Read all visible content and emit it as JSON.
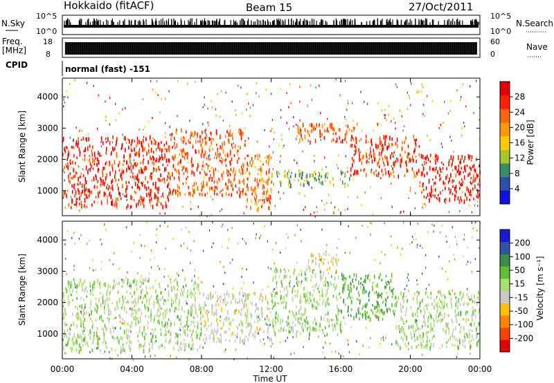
{
  "header": {
    "station": "Hokkaido (fitACF)",
    "beam": "Beam 15",
    "date": "27/Oct/2011"
  },
  "noise_panel": {
    "left_label": "N.Sky",
    "right_label": "N.Search",
    "ticks_left": [
      "10^5",
      "10^0"
    ],
    "ticks_right": [
      "10^5",
      "10^0"
    ]
  },
  "freq_panel": {
    "left_label_1": "Freq.",
    "left_label_2": "[MHz]",
    "right_label": "Nave",
    "ticks_left": [
      "18",
      "8"
    ],
    "ticks_right": [
      "60",
      "0"
    ]
  },
  "cpid_panel": {
    "label": "CPID",
    "text": "normal (fast) -151"
  },
  "colors": {
    "power_scale": [
      "#1010e0",
      "#2c4fa8",
      "#3c8c6c",
      "#a8c828",
      "#ffcc00",
      "#ff9900",
      "#ff6600",
      "#ff2200",
      "#e00000"
    ],
    "velocity_scale": [
      "#1a1ad0",
      "#2b56a8",
      "#3c8c4c",
      "#60c030",
      "#a8e070",
      "#c8c8c8",
      "#ffc000",
      "#ff8800",
      "#ff4400",
      "#e00000"
    ]
  },
  "chart_data": [
    {
      "type": "heatmap",
      "name": "power",
      "xlabel": "",
      "ylabel": "Slant Range [km]",
      "xlim": [
        "00:00",
        "00:00"
      ],
      "ylim": [
        200,
        4600
      ],
      "yticks": [
        "1000",
        "2000",
        "3000",
        "4000"
      ],
      "colorbar": {
        "label": "Power [dB]",
        "ticks": [
          "4",
          "8",
          "12",
          "16",
          "20",
          "24",
          "28"
        ]
      },
      "regions": [
        {
          "t0": 0.0,
          "t1": 6.2,
          "r0": 500,
          "r1": 2800,
          "v": 25
        },
        {
          "t0": 6.2,
          "t1": 10.5,
          "r0": 900,
          "r1": 3000,
          "v": 22
        },
        {
          "t0": 10.5,
          "t1": 12.0,
          "r0": 400,
          "r1": 2200,
          "v": 20
        },
        {
          "t0": 12.0,
          "t1": 16.5,
          "r0": 1200,
          "r1": 1700,
          "v": 10
        },
        {
          "t0": 13.5,
          "t1": 17.0,
          "r0": 2600,
          "r1": 3200,
          "v": 22
        },
        {
          "t0": 16.5,
          "t1": 20.5,
          "r0": 1500,
          "r1": 2800,
          "v": 24
        },
        {
          "t0": 20.5,
          "t1": 24.0,
          "r0": 700,
          "r1": 2200,
          "v": 27
        }
      ]
    },
    {
      "type": "heatmap",
      "name": "velocity",
      "xlabel": "Time UT",
      "ylabel": "Slant Range [km]",
      "xticks": [
        "00:00",
        "04:00",
        "08:00",
        "12:00",
        "16:00",
        "20:00",
        "00:00"
      ],
      "ylim": [
        200,
        4600
      ],
      "yticks": [
        "1000",
        "2000",
        "3000",
        "4000"
      ],
      "colorbar": {
        "label": "Velocity [m s⁻¹]",
        "ticks": [
          "200",
          "100",
          "50",
          "15",
          "-15",
          "-50",
          "-100",
          "-200"
        ]
      },
      "regions": [
        {
          "t0": 0.0,
          "t1": 8.0,
          "r0": 500,
          "r1": 2800,
          "v": 0
        },
        {
          "t0": 8.0,
          "t1": 12.0,
          "r0": 800,
          "r1": 2400,
          "v": -30
        },
        {
          "t0": 12.0,
          "t1": 16.0,
          "r0": 1000,
          "r1": 3100,
          "v": 0
        },
        {
          "t0": 14.0,
          "t1": 16.0,
          "r0": 3100,
          "r1": 3600,
          "v": -40
        },
        {
          "t0": 16.0,
          "t1": 19.0,
          "r0": 1500,
          "r1": 3000,
          "v": 40
        },
        {
          "t0": 19.0,
          "t1": 24.0,
          "r0": 600,
          "r1": 2400,
          "v": 0
        }
      ]
    }
  ]
}
